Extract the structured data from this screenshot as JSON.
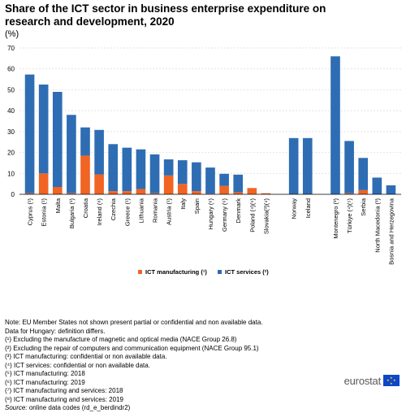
{
  "header": {
    "title": "Share of the ICT sector in business enterprise expenditure on research and development, 2020",
    "unit": "(%)"
  },
  "chart_data": {
    "type": "bar",
    "stacked": true,
    "categories": [
      "Cyprus (¹)",
      "Estonia (¹)",
      "Malta",
      "Bulgaria (¹)",
      "Croatia",
      "Ireland (⁸)",
      "Czechia",
      "Greece (¹)",
      "Lithuania",
      "Romania",
      "Austria (¹)",
      "Italy",
      "Spain",
      "Hungary (⁶)",
      "Germany (⁶)",
      "Denmark",
      "Poland (⁴)(⁵)",
      "Slovakia(³)(⁴)",
      "",
      "Norway",
      "Iceland",
      "",
      "Montenegro (³)",
      "Türkiye (⁴)(⁵)",
      "Serbia",
      "North Macedonia (³)",
      "Bosnia and Herzegovina"
    ],
    "series": [
      {
        "name": "ICT manufacturing (¹)",
        "color": "#f06424",
        "values": [
          0.5,
          10,
          3.5,
          0.5,
          18.5,
          9.5,
          1.5,
          1.5,
          2.5,
          0.5,
          9,
          5,
          1.5,
          0.3,
          4,
          1,
          3,
          0.5,
          null,
          0,
          0,
          null,
          0,
          0.5,
          2,
          0,
          0
        ]
      },
      {
        "name": "ICT services (²)",
        "color": "#2e6db3",
        "values": [
          56.8,
          42.5,
          45.5,
          37.5,
          13.5,
          21.3,
          22.5,
          20.8,
          19,
          18.6,
          7.7,
          11.3,
          13.8,
          12.5,
          5.8,
          8.4,
          0,
          0,
          null,
          26.9,
          26.9,
          null,
          66,
          25,
          15.4,
          8,
          4.3
        ]
      }
    ],
    "ylim": [
      0,
      70
    ],
    "yticks": [
      "0",
      "10",
      "20",
      "30",
      "40",
      "50",
      "60",
      "70"
    ],
    "grid": true,
    "legend": "bottom-center"
  },
  "notes": [
    "Note: EU Member States not shown present partial or confidential and non available data.",
    "Data for Hungary: definition differs.",
    "(¹) Excluding the manufacture of magnetic and optical media (NACE Group 26.8)",
    "(²) Excluding the repair of computers and communication equipment (NACE Group 95.1)",
    "(³) ICT manufacturing: confidential or non available data.",
    "(⁴) ICT services: confidential or non available data.",
    "(⁵) ICT manufacturing: 2018",
    "(⁶) ICT manufacturing: 2019",
    "(⁷) ICT manufacturing and services: 2018",
    "(⁸) ICT manufacturing and services: 2019"
  ],
  "source": {
    "label": "Source:",
    "text": "online data codes (rd_e_berdindr2)"
  },
  "logo": {
    "text": "eurostat"
  }
}
